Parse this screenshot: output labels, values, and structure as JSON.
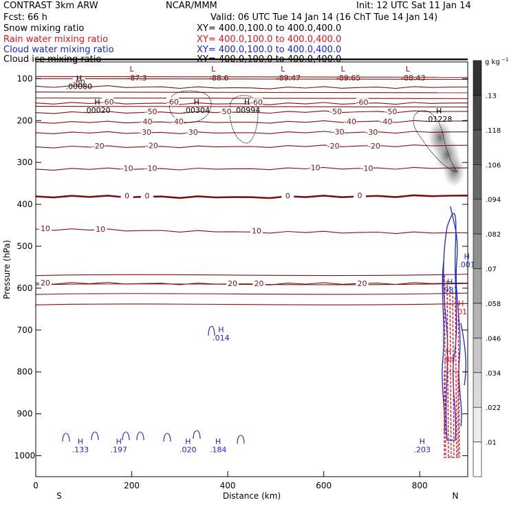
{
  "header": {
    "left_title": "CONTRAST  3km ARW",
    "center_title": "NCAR/MMM",
    "init": "Init: 12 UTC Sat 11 Jan 14",
    "fcst": "Fcst:   66 h",
    "valid": "Valid: 06 UTC Tue 14 Jan 14 (16 ChT Tue 14 Jan 14)",
    "fields": [
      {
        "name": "Snow mixing ratio",
        "xy": "XY= 400.0,100.0 to 400.0,400.0",
        "color": "#000000"
      },
      {
        "name": "Rain water mixing ratio",
        "xy": "XY= 400.0,100.0 to 400.0,400.0",
        "color": "#e0141e"
      },
      {
        "name": "Cloud water mixing ratio",
        "xy": "XY= 400.0,100.0 to 400.0,400.0",
        "color": "#1424d2"
      },
      {
        "name": "Cloud ice mixing ratio",
        "xy": "XY= 400.0,100.0 to 400.0,400.0",
        "color": "#000000"
      }
    ]
  },
  "chart_data": {
    "type": "contour",
    "title": "Vertical cross section",
    "xlabel": "Distance (km)",
    "ylabel": "Pressure (hPa)",
    "xlim": [
      0,
      900
    ],
    "ylim": [
      1050,
      60
    ],
    "xticks": [
      0,
      200,
      400,
      600,
      800
    ],
    "yticks": [
      100,
      200,
      300,
      400,
      500,
      600,
      700,
      800,
      900,
      1000
    ],
    "x_end_labels": {
      "left": "S",
      "right": "N"
    },
    "colorbar": {
      "unit": "g kg",
      "unit_exp": "−1",
      "labels": [
        ".01",
        ".022",
        ".034",
        ".046",
        ".058",
        ".07",
        ".082",
        ".094",
        ".106",
        ".118",
        ".13"
      ]
    },
    "temperature_contours": [
      {
        "value": -80,
        "pressure": [
          118,
          122,
          120
        ]
      },
      {
        "value": -60,
        "pressure": [
          158,
          160,
          158
        ]
      },
      {
        "value": -50,
        "pressure": [
          181,
          180,
          178
        ]
      },
      {
        "value": -40,
        "pressure": [
          204,
          204,
          201
        ]
      },
      {
        "value": -30,
        "pressure": [
          229,
          229,
          227
        ]
      },
      {
        "value": -20,
        "pressure": [
          263,
          262,
          259
        ]
      },
      {
        "value": -10,
        "pressure": [
          316,
          315,
          313
        ]
      },
      {
        "value": 0,
        "pressure": [
          381,
          383,
          379
        ]
      },
      {
        "value": 10,
        "pressure": [
          459,
          466,
          468
        ]
      },
      {
        "value": 20,
        "pressure": [
          588,
          590,
          588
        ]
      }
    ],
    "contour_labels": [
      {
        "text": "-80",
        "x": 90,
        "p": 110
      },
      {
        "text": "-60",
        "x": 150,
        "p": 157
      },
      {
        "text": "-60",
        "x": 285,
        "p": 157
      },
      {
        "text": "-60",
        "x": 460,
        "p": 158
      },
      {
        "text": "-60",
        "x": 680,
        "p": 158
      },
      {
        "text": "-50",
        "x": 240,
        "p": 180
      },
      {
        "text": "-50",
        "x": 395,
        "p": 180
      },
      {
        "text": "-50",
        "x": 625,
        "p": 180
      },
      {
        "text": "-50",
        "x": 740,
        "p": 180
      },
      {
        "text": "-40",
        "x": 230,
        "p": 204
      },
      {
        "text": "-40",
        "x": 295,
        "p": 204
      },
      {
        "text": "-40",
        "x": 655,
        "p": 204
      },
      {
        "text": "-40",
        "x": 730,
        "p": 204
      },
      {
        "text": "-30",
        "x": 228,
        "p": 229
      },
      {
        "text": "-30",
        "x": 325,
        "p": 229
      },
      {
        "text": "-30",
        "x": 630,
        "p": 228
      },
      {
        "text": "-30",
        "x": 700,
        "p": 229
      },
      {
        "text": "-20",
        "x": 130,
        "p": 262
      },
      {
        "text": "-20",
        "x": 242,
        "p": 261
      },
      {
        "text": "-20",
        "x": 620,
        "p": 262
      },
      {
        "text": "-20",
        "x": 705,
        "p": 262
      },
      {
        "text": "-10",
        "x": 190,
        "p": 315
      },
      {
        "text": "-10",
        "x": 240,
        "p": 315
      },
      {
        "text": "-10",
        "x": 580,
        "p": 314
      },
      {
        "text": "-10",
        "x": 690,
        "p": 315
      },
      {
        "text": "0",
        "x": 190,
        "p": 381
      },
      {
        "text": "0",
        "x": 232,
        "p": 381
      },
      {
        "text": "0",
        "x": 525,
        "p": 381
      },
      {
        "text": "0",
        "x": 675,
        "p": 380
      },
      {
        "text": "10",
        "x": 20,
        "p": 459
      },
      {
        "text": "10",
        "x": 135,
        "p": 461
      },
      {
        "text": "10",
        "x": 460,
        "p": 465
      },
      {
        "text": "20",
        "x": 20,
        "p": 589
      },
      {
        "text": "20",
        "x": 410,
        "p": 590
      },
      {
        "text": "20",
        "x": 465,
        "p": 590
      },
      {
        "text": "20",
        "x": 680,
        "p": 590
      }
    ],
    "high_labels": [
      {
        "label": "H",
        "value": ".00080",
        "x": 70,
        "p": 115,
        "color": "#000000"
      },
      {
        "label": "H",
        "value": ".00020",
        "x": 108,
        "p": 172,
        "color": "#000000"
      },
      {
        "label": "H",
        "value": ".00304",
        "x": 315,
        "p": 172,
        "color": "#000000"
      },
      {
        "label": "H",
        "value": ".00994",
        "x": 420,
        "p": 172,
        "color": "#000000"
      },
      {
        "label": "H",
        "value": ".01228",
        "x": 820,
        "p": 193,
        "color": "#000000"
      },
      {
        "label": "H",
        "value": ".001",
        "x": 878,
        "p": 540,
        "color": "#1424d2"
      },
      {
        "label": "H",
        "value": ".981",
        "x": 843,
        "p": 601,
        "color": "#1424d2"
      },
      {
        "label": "H",
        "value": ".01",
        "x": 866,
        "p": 653,
        "color": "#e0141e"
      },
      {
        "label": "H",
        "value": ".014",
        "x": 366,
        "p": 715,
        "color": "#1424d2"
      },
      {
        "label": "H",
        "value": ".84",
        "x": 840,
        "p": 767,
        "color": "#e0141e"
      },
      {
        "label": "H",
        "value": ".133",
        "x": 73,
        "p": 982,
        "color": "#1424d2"
      },
      {
        "label": "H",
        "value": ".197",
        "x": 153,
        "p": 982,
        "color": "#1424d2"
      },
      {
        "label": "H",
        "value": ".020",
        "x": 297,
        "p": 982,
        "color": "#1424d2"
      },
      {
        "label": "H",
        "value": ".184",
        "x": 360,
        "p": 982,
        "color": "#1424d2"
      },
      {
        "label": "H",
        "value": ".203",
        "x": 785,
        "p": 982,
        "color": "#1424d2"
      }
    ],
    "low_labels": [
      {
        "label": "L",
        "value": "-87.3",
        "x": 200,
        "p": 70
      },
      {
        "label": "L",
        "value": "-88.6",
        "x": 370,
        "p": 70
      },
      {
        "label": "L",
        "value": "-89.47",
        "x": 515,
        "p": 70
      },
      {
        "label": "L",
        "value": "-89.65",
        "x": 640,
        "p": 70
      },
      {
        "label": "L",
        "value": "-88.43",
        "x": 775,
        "p": 70
      }
    ]
  }
}
